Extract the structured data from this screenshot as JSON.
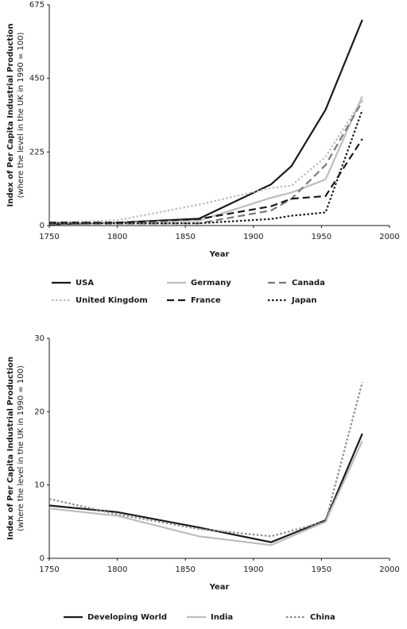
{
  "chart_data": [
    {
      "type": "line",
      "ylabel": "Index of Per Capita Industrial Production",
      "ylabel_sub": "(where the level in the UK in 1990 = 100)",
      "xlabel": "Year",
      "x": [
        1750,
        1800,
        1860,
        1913,
        1928,
        1953,
        1980
      ],
      "xlim": [
        1750,
        2000
      ],
      "xticks": [
        1750,
        1800,
        1850,
        1900,
        1950,
        2000
      ],
      "ylim": [
        0,
        675
      ],
      "yticks": [
        0,
        225,
        450,
        675
      ],
      "series": [
        {
          "name": "USA",
          "color": "#1a1a1a",
          "dash": "solid",
          "values": [
            4,
            9,
            21,
            126,
            182,
            354,
            629
          ]
        },
        {
          "name": "Germany",
          "color": "#bdbdbd",
          "dash": "solid",
          "values": [
            8,
            8,
            15,
            85,
            101,
            141,
            395
          ]
        },
        {
          "name": "Canada",
          "color": "#7a7a7a",
          "dash": "dashed",
          "values": [
            5,
            6,
            7,
            46,
            82,
            185,
            380
          ]
        },
        {
          "name": "United Kingdom",
          "color": "#bdbdbd",
          "dash": "dotted",
          "values": [
            10,
            16,
            64,
            115,
            122,
            210,
            385
          ]
        },
        {
          "name": "France",
          "color": "#1a1a1a",
          "dash": "dashed",
          "values": [
            9,
            9,
            20,
            59,
            82,
            90,
            265
          ]
        },
        {
          "name": "Japan",
          "color": "#1a1a1a",
          "dash": "dotted",
          "values": [
            7,
            7,
            7,
            20,
            30,
            40,
            353
          ]
        }
      ]
    },
    {
      "type": "line",
      "ylabel": "Index of Per Capita Industrial Production",
      "ylabel_sub": "(where the level in the UK in 1990 = 100)",
      "xlabel": "Year",
      "x": [
        1750,
        1800,
        1860,
        1913,
        1953,
        1980
      ],
      "xlim": [
        1750,
        2000
      ],
      "xticks": [
        1750,
        1800,
        1850,
        1900,
        1950,
        2000
      ],
      "ylim": [
        0,
        30
      ],
      "yticks": [
        0,
        10,
        20,
        30
      ],
      "series": [
        {
          "name": "Developing World",
          "color": "#1a1a1a",
          "dash": "solid",
          "values": [
            7.2,
            6.3,
            4.2,
            2.2,
            5.2,
            17
          ]
        },
        {
          "name": "India",
          "color": "#bdbdbd",
          "dash": "solid",
          "values": [
            6.8,
            5.8,
            3,
            1.8,
            5,
            16
          ]
        },
        {
          "name": "China",
          "color": "#8a8a8a",
          "dash": "dotted",
          "values": [
            8.1,
            6,
            4,
            3,
            5,
            24
          ]
        }
      ]
    }
  ]
}
